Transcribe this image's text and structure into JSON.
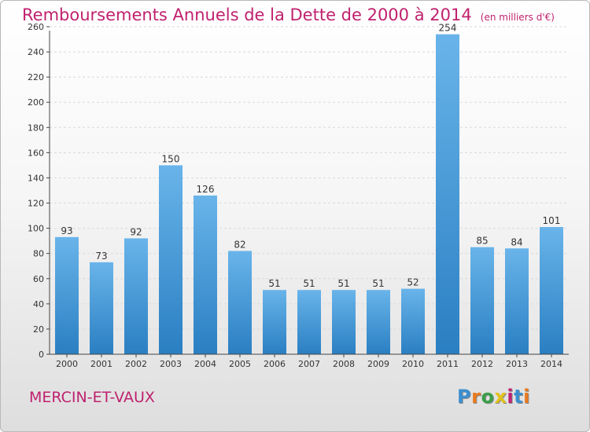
{
  "title": {
    "main": "Remboursements Annuels de la Dette de 2000 à 2014",
    "unit": "(en milliers d'€)"
  },
  "commune": "MERCIN-ET-VAUX",
  "logo": {
    "letters": [
      "P",
      "r",
      "o",
      "x",
      "i",
      "t",
      "i"
    ],
    "colors": [
      "#3a8fd0",
      "#e87a1e",
      "#3aa04a",
      "#e2c21a",
      "#c0216e",
      "#3a8fd0",
      "#e87a1e"
    ]
  },
  "colors": {
    "bar_light": "#69b4ea",
    "bar_dark": "#2a7fc2",
    "title": "#c0216e",
    "grid": "#d9d9d9"
  },
  "chart_data": {
    "type": "bar",
    "categories": [
      "2000",
      "2001",
      "2002",
      "2003",
      "2004",
      "2005",
      "2006",
      "2007",
      "2008",
      "2009",
      "2010",
      "2011",
      "2012",
      "2013",
      "2014"
    ],
    "values": [
      93,
      73,
      92,
      150,
      126,
      82,
      51,
      51,
      51,
      51,
      52,
      254,
      85,
      84,
      101
    ],
    "yticks": [
      0,
      20,
      40,
      60,
      80,
      100,
      120,
      140,
      160,
      180,
      200,
      220,
      240,
      260
    ],
    "ylim": [
      0,
      260
    ],
    "grid": true,
    "title": "Remboursements Annuels de la Dette de 2000 à 2014",
    "xlabel": "",
    "ylabel": ""
  }
}
